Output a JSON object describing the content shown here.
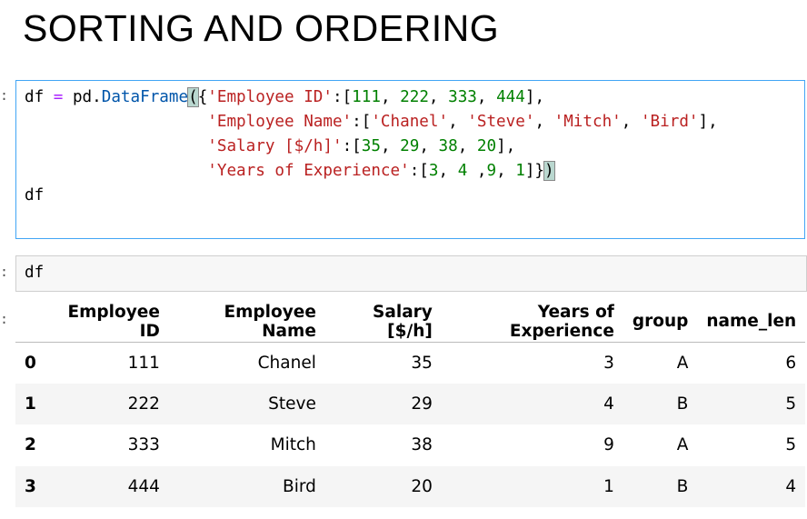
{
  "header": {
    "title": "SORTING AND ORDERING"
  },
  "cells": [
    {
      "prompt": ":",
      "code": [
        [
          {
            "text": "df ",
            "color": "#000000"
          },
          {
            "text": "=",
            "color": "#aa22ff"
          },
          {
            "text": " pd.",
            "color": "#000000"
          },
          {
            "text": "DataFrame",
            "color": "#0055aa"
          },
          {
            "text": "(",
            "color": "#000000",
            "matched": true
          },
          {
            "text": "{",
            "color": "#000000"
          },
          {
            "text": "'Employee ID'",
            "color": "#ba2121"
          },
          {
            "text": ":[",
            "color": "#000000"
          },
          {
            "text": "111",
            "color": "#008000"
          },
          {
            "text": ", ",
            "color": "#000000"
          },
          {
            "text": "222",
            "color": "#008000"
          },
          {
            "text": ", ",
            "color": "#000000"
          },
          {
            "text": "333",
            "color": "#008000"
          },
          {
            "text": ", ",
            "color": "#000000"
          },
          {
            "text": "444",
            "color": "#008000"
          },
          {
            "text": "],",
            "color": "#000000"
          }
        ],
        [
          {
            "text": "                   ",
            "color": "#000000"
          },
          {
            "text": "'Employee Name'",
            "color": "#ba2121"
          },
          {
            "text": ":[",
            "color": "#000000"
          },
          {
            "text": "'Chanel'",
            "color": "#ba2121"
          },
          {
            "text": ", ",
            "color": "#000000"
          },
          {
            "text": "'Steve'",
            "color": "#ba2121"
          },
          {
            "text": ", ",
            "color": "#000000"
          },
          {
            "text": "'Mitch'",
            "color": "#ba2121"
          },
          {
            "text": ", ",
            "color": "#000000"
          },
          {
            "text": "'Bird'",
            "color": "#ba2121"
          },
          {
            "text": "],",
            "color": "#000000"
          }
        ],
        [
          {
            "text": "                   ",
            "color": "#000000"
          },
          {
            "text": "'Salary [$/h]'",
            "color": "#ba2121"
          },
          {
            "text": ":[",
            "color": "#000000"
          },
          {
            "text": "35",
            "color": "#008000"
          },
          {
            "text": ", ",
            "color": "#000000"
          },
          {
            "text": "29",
            "color": "#008000"
          },
          {
            "text": ", ",
            "color": "#000000"
          },
          {
            "text": "38",
            "color": "#008000"
          },
          {
            "text": ", ",
            "color": "#000000"
          },
          {
            "text": "20",
            "color": "#008000"
          },
          {
            "text": "],",
            "color": "#000000"
          }
        ],
        [
          {
            "text": "                   ",
            "color": "#000000"
          },
          {
            "text": "'Years of Experience'",
            "color": "#ba2121"
          },
          {
            "text": ":[",
            "color": "#000000"
          },
          {
            "text": "3",
            "color": "#008000"
          },
          {
            "text": ", ",
            "color": "#000000"
          },
          {
            "text": "4",
            "color": "#008000"
          },
          {
            "text": " ,",
            "color": "#000000"
          },
          {
            "text": "9",
            "color": "#008000"
          },
          {
            "text": ", ",
            "color": "#000000"
          },
          {
            "text": "1",
            "color": "#008000"
          },
          {
            "text": "]}",
            "color": "#000000"
          },
          {
            "text": ")",
            "color": "#000000",
            "matched": true
          }
        ],
        [
          {
            "text": "df",
            "color": "#000000"
          }
        ]
      ]
    },
    {
      "prompt": ":",
      "code": [
        [
          {
            "text": "df",
            "color": "#000000"
          }
        ]
      ]
    }
  ],
  "output": {
    "prompt": ":",
    "table": {
      "columns": [
        "Employee ID",
        "Employee Name",
        "Salary [$/h]",
        "Years of Experience",
        "group",
        "name_len"
      ],
      "rows": [
        [
          0,
          111,
          "Chanel",
          35,
          3,
          "A",
          6
        ],
        [
          1,
          222,
          "Steve",
          29,
          4,
          "B",
          5
        ],
        [
          2,
          333,
          "Mitch",
          38,
          9,
          "A",
          5
        ],
        [
          3,
          444,
          "Bird",
          20,
          1,
          "B",
          4
        ]
      ]
    }
  }
}
